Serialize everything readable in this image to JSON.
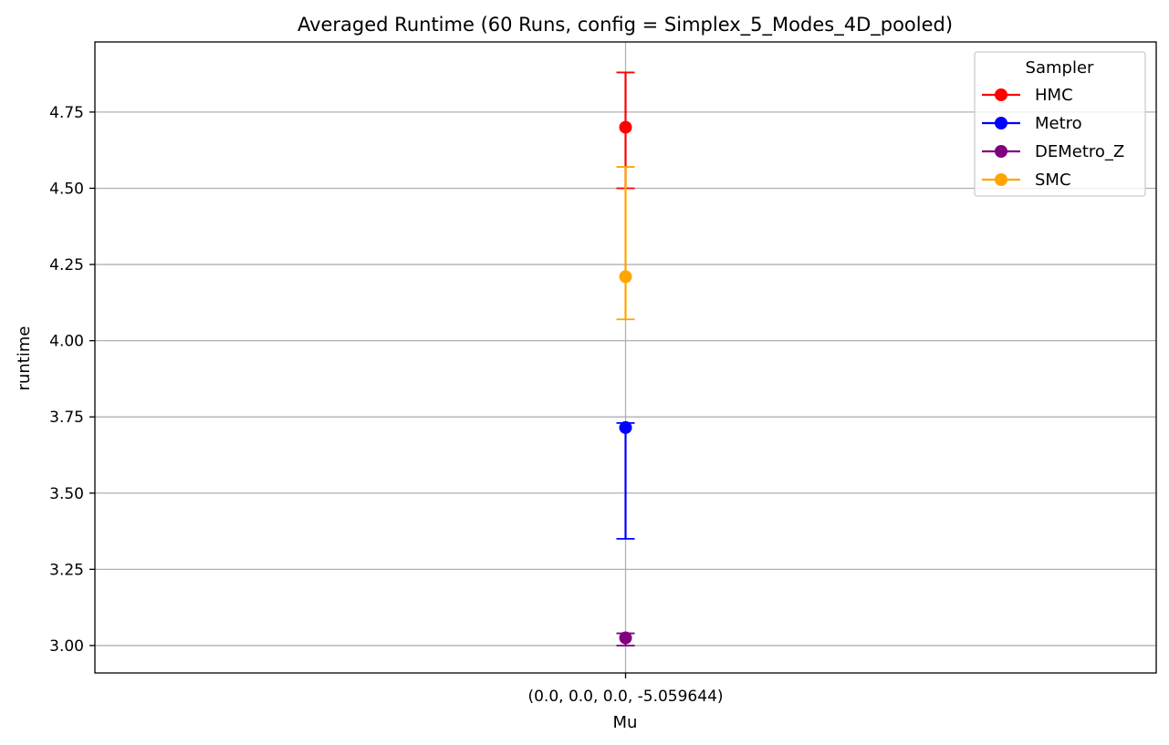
{
  "chart_data": {
    "type": "scatter",
    "title": "Averaged Runtime (60 Runs, config = Simplex_5_Modes_4D_pooled)",
    "xlabel": "Mu",
    "ylabel": "runtime",
    "categories": [
      "(0.0, 0.0, 0.0, -5.059644)"
    ],
    "ylim": [
      2.91,
      4.98
    ],
    "yticks": [
      "3.00",
      "3.25",
      "3.50",
      "3.75",
      "4.00",
      "4.25",
      "4.50",
      "4.75"
    ],
    "grid": true,
    "legend": {
      "title": "Sampler",
      "placement": "top-right"
    },
    "series": [
      {
        "name": "HMC",
        "color": "#ff0000",
        "values": [
          4.7
        ],
        "err_low": [
          4.5
        ],
        "err_high": [
          4.88
        ]
      },
      {
        "name": "Metro",
        "color": "#0000ff",
        "values": [
          3.715
        ],
        "err_low": [
          3.35
        ],
        "err_high": [
          3.73
        ]
      },
      {
        "name": "DEMetro_Z",
        "color": "#800080",
        "values": [
          3.025
        ],
        "err_low": [
          3.0
        ],
        "err_high": [
          3.04
        ]
      },
      {
        "name": "SMC",
        "color": "#ffa500",
        "values": [
          4.21
        ],
        "err_low": [
          4.07
        ],
        "err_high": [
          4.57
        ]
      }
    ]
  }
}
